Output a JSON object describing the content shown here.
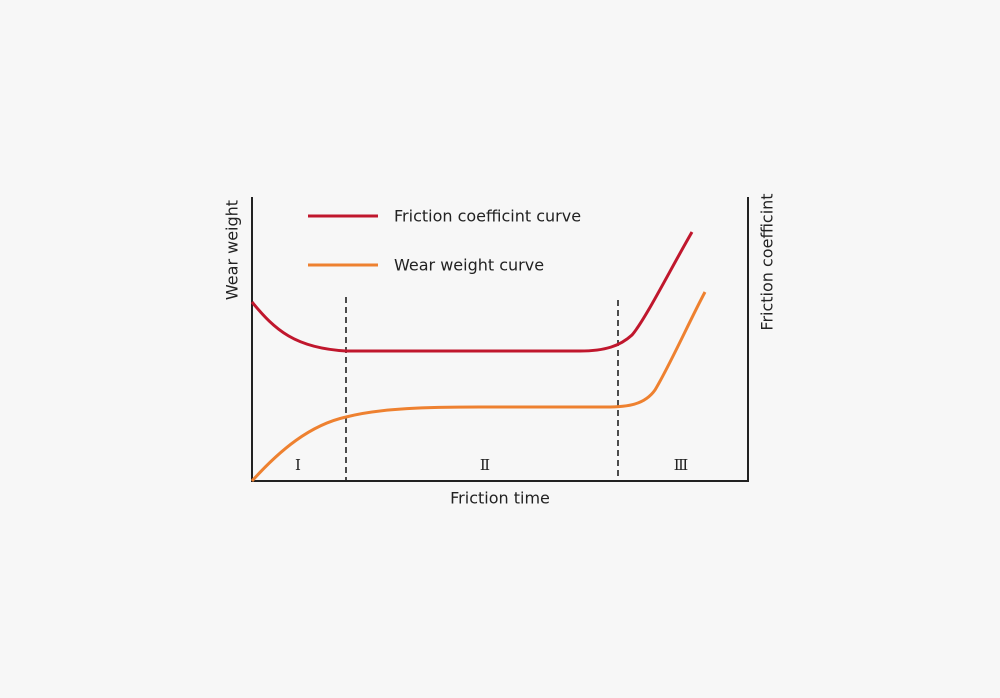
{
  "diagram": {
    "legend": [
      {
        "label": "Friction coefficint curve",
        "color": "#c0172d"
      },
      {
        "label": "Wear weight curve",
        "color": "#ee8130"
      }
    ],
    "axes": {
      "left_label": "Wear weight",
      "right_label": "Friction coefficint",
      "bottom_label": "Friction time"
    },
    "stages": [
      "Ⅰ",
      "Ⅱ",
      "Ⅲ"
    ]
  }
}
